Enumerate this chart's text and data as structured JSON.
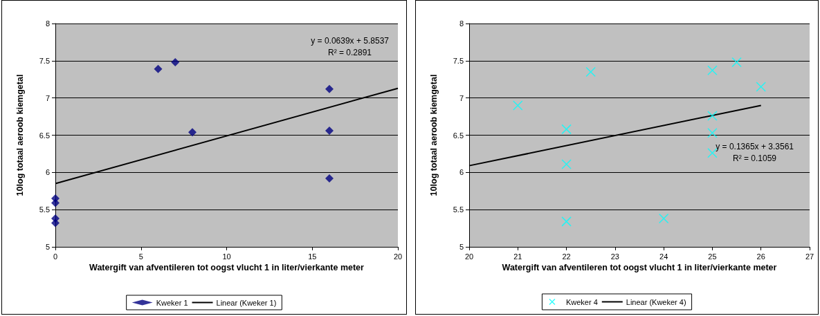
{
  "chart_data": [
    {
      "type": "scatter",
      "xlabel": "Watergift van afventileren tot oogst vlucht 1 in liter/vierkante meter",
      "ylabel": "10log totaal aeroob kiemgetal",
      "xlim": [
        0,
        20
      ],
      "xticks": [
        0,
        5,
        10,
        15,
        20
      ],
      "ylim": [
        5,
        8
      ],
      "yticks": [
        5,
        5.5,
        6,
        6.5,
        7,
        7.5,
        8
      ],
      "grid": "y",
      "legend": "bottom",
      "annotations": [
        "y = 0.0639x + 5.8537",
        "R² = 0.2891"
      ],
      "series": [
        {
          "name": "Kweker 1",
          "color": "#000080",
          "marker": "diamond",
          "x": [
            0,
            0,
            0,
            0,
            6,
            7,
            8,
            16,
            16,
            16
          ],
          "values": [
            5.65,
            5.59,
            5.38,
            5.32,
            7.39,
            7.48,
            6.54,
            7.12,
            6.56,
            5.92
          ]
        },
        {
          "name": "Linear (Kweker 1)",
          "type": "line",
          "color": "#000000",
          "marker": "none",
          "x": [
            0,
            20
          ],
          "values": [
            5.85,
            7.13
          ]
        }
      ]
    },
    {
      "type": "scatter",
      "xlabel": "Watergift van afventileren tot oogst vlucht 1 in liter/vierkante meter",
      "ylabel": "10log totaal aeroob kiemgetal",
      "xlim": [
        20,
        27
      ],
      "xticks": [
        20,
        21,
        22,
        23,
        24,
        25,
        26,
        27
      ],
      "ylim": [
        5,
        8
      ],
      "yticks": [
        5,
        5.5,
        6,
        6.5,
        7,
        7.5,
        8
      ],
      "grid": "y",
      "legend": "bottom",
      "annotations": [
        "y = 0.1365x + 3.3561",
        "R² = 0.1059"
      ],
      "series": [
        {
          "name": "Kweker 4",
          "color": "#00ffff",
          "marker": "cross",
          "x": [
            21,
            22,
            22,
            22,
            22.5,
            24,
            25,
            25,
            25,
            25,
            25.5,
            26
          ],
          "values": [
            6.9,
            6.58,
            6.11,
            5.34,
            7.35,
            5.38,
            7.37,
            6.76,
            6.53,
            6.26,
            7.48,
            7.15
          ]
        },
        {
          "name": "Linear (Kweker 4)",
          "type": "line",
          "color": "#000000",
          "marker": "none",
          "x": [
            20,
            26
          ],
          "values": [
            6.09,
            6.9
          ]
        }
      ]
    }
  ]
}
